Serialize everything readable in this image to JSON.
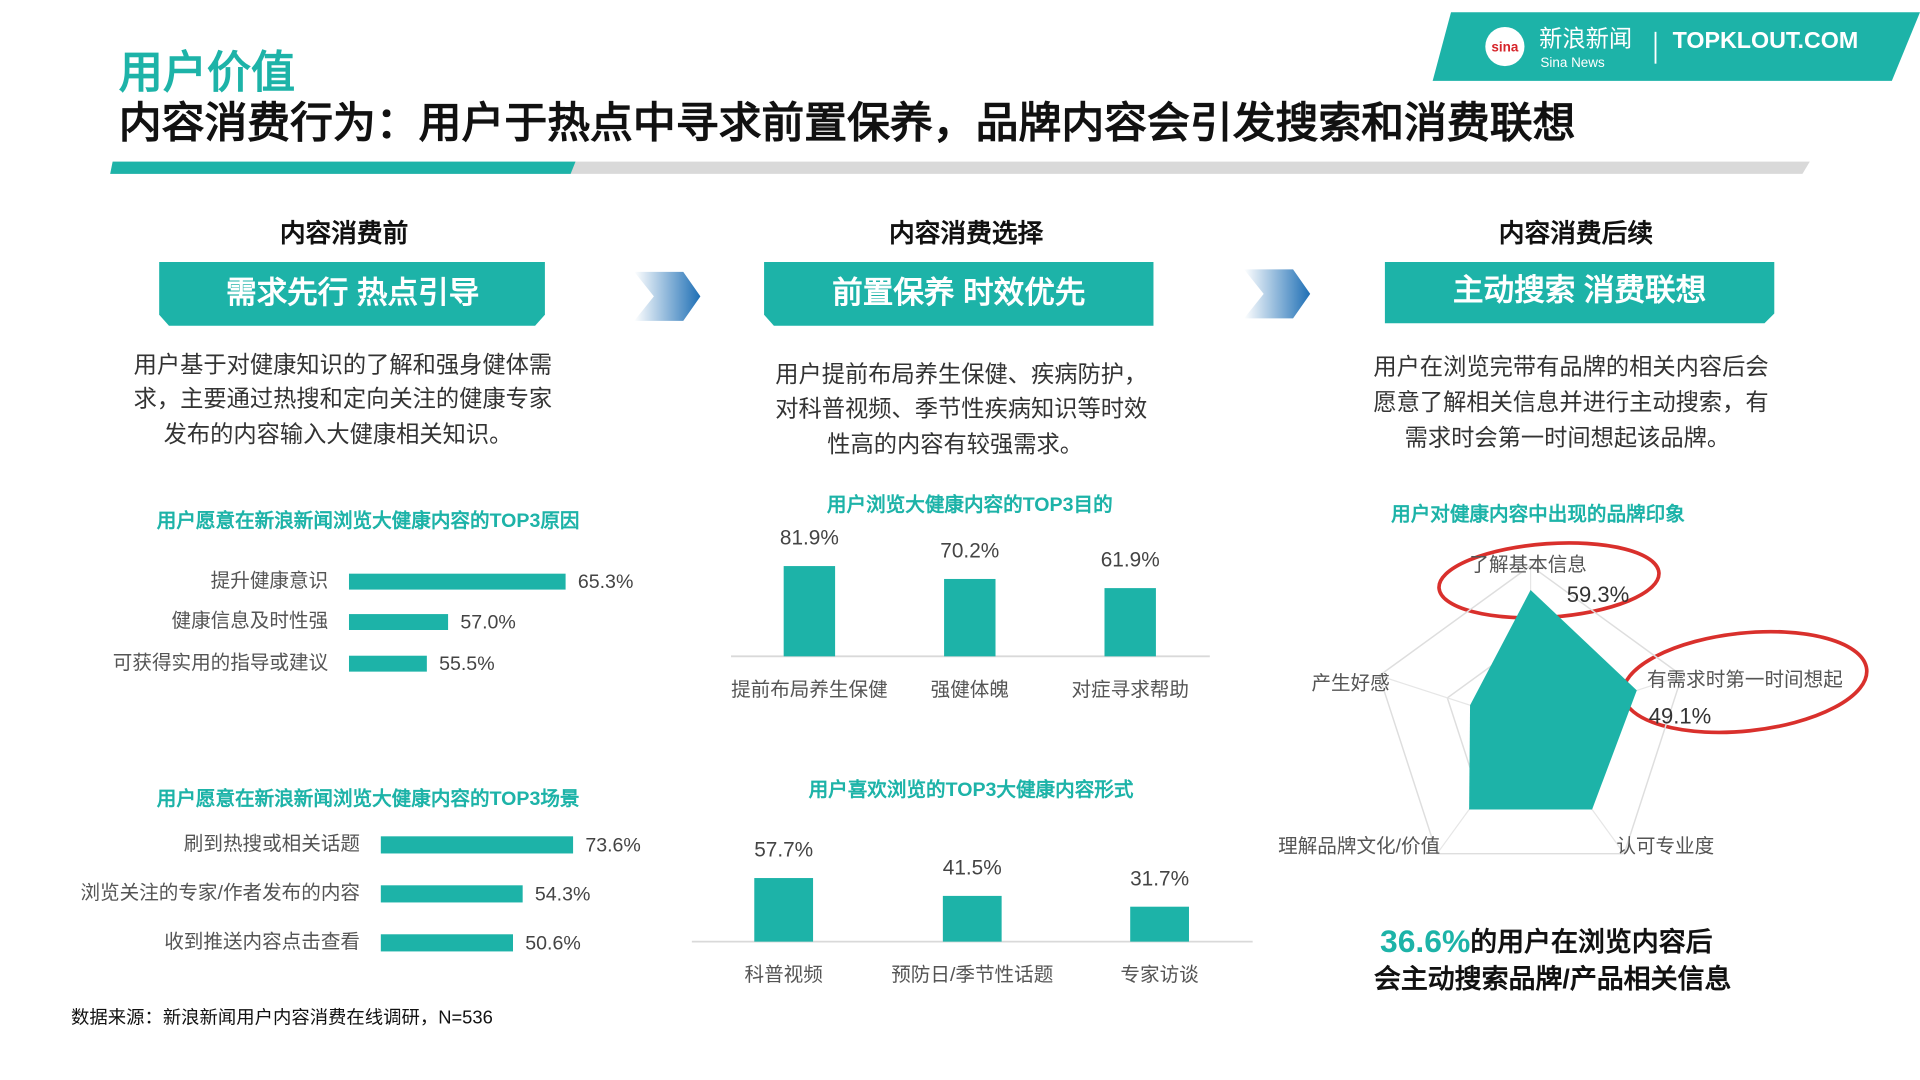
{
  "header": {
    "section": "用户价值",
    "title": "内容消费行为：用户于热点中寻求前置保养，品牌内容会引发搜索和消费联想",
    "logo_cn": "新浪新闻",
    "logo_en": "Sina News",
    "logo_brand": "TOPKLOUT.COM"
  },
  "columns": [
    {
      "heading": "内容消费前",
      "banner": "需求先行 热点引导",
      "text": [
        "用户基于对健康知识的了解和强身健体需",
        "求，主要通过热搜和定向关注的健康专家",
        "发布的内容输入大健康相关知识。"
      ]
    },
    {
      "heading": "内容消费选择",
      "banner": "前置保养 时效优先",
      "text": [
        "用户提前布局养生保健、疾病防护，",
        "对科普视频、季节性疾病知识等时效",
        "性高的内容有较强需求。"
      ]
    },
    {
      "heading": "内容消费后续",
      "banner": "主动搜索 消费联想",
      "text": [
        "用户在浏览完带有品牌的相关内容后会",
        "愿意了解相关信息并进行主动搜索，有",
        "需求时会第一时间想起该品牌。"
      ]
    }
  ],
  "chart_data": [
    {
      "type": "hbar",
      "title": "用户愿意在新浪新闻浏览大健康内容的TOP3原因",
      "categories": [
        "提升健康意识",
        "健康信息及时性强",
        "可获得实用的指导或建议"
      ],
      "values": [
        65.3,
        57.0,
        55.5
      ],
      "value_labels": [
        "65.3%",
        "57.0%",
        "55.5%"
      ],
      "xlim": [
        50,
        66
      ],
      "color": "#1db3a8"
    },
    {
      "type": "hbar",
      "title": "用户愿意在新浪新闻浏览大健康内容的TOP3场景",
      "categories": [
        "刷到热搜或相关话题",
        "浏览关注的专家/作者发布的内容",
        "收到推送内容点击查看"
      ],
      "values": [
        73.6,
        54.3,
        50.6
      ],
      "value_labels": [
        "73.6%",
        "54.3%",
        "50.6%"
      ],
      "xlim": [
        0,
        75
      ],
      "color": "#1db3a8"
    },
    {
      "type": "bar",
      "title": "用户浏览大健康内容的TOP3目的",
      "categories": [
        "提前布局养生保健",
        "强健体魄",
        "对症寻求帮助"
      ],
      "values": [
        81.9,
        70.2,
        61.9
      ],
      "value_labels": [
        "81.9%",
        "70.2%",
        "61.9%"
      ],
      "ylim": [
        0,
        100
      ],
      "color": "#1db3a8"
    },
    {
      "type": "bar",
      "title": "用户喜欢浏览的TOP3大健康内容形式",
      "categories": [
        "科普视频",
        "预防日/季节性话题",
        "专家访谈"
      ],
      "values": [
        57.7,
        41.5,
        31.7
      ],
      "value_labels": [
        "57.7%",
        "41.5%",
        "31.7%"
      ],
      "ylim": [
        0,
        100
      ],
      "color": "#1db3a8"
    },
    {
      "type": "radar",
      "title": "用户对健康内容中出现的品牌印象",
      "categories": [
        "了解基本信息",
        "有需求时第一时间想起",
        "认可专业度",
        "理解品牌文化/价值",
        "产生好感"
      ],
      "values": [
        59.3,
        49.1,
        46,
        46,
        28
      ],
      "value_labels": [
        "59.3%",
        "49.1%",
        null,
        null,
        null
      ],
      "rlim": [
        0,
        70
      ],
      "color": "#1db3a8"
    }
  ],
  "highlight": {
    "value": "36.6%",
    "line1": "的用户在浏览内容后",
    "line2": "会主动搜索品牌/产品相关信息"
  },
  "source": "数据来源：新浪新闻用户内容消费在线调研，N=536"
}
